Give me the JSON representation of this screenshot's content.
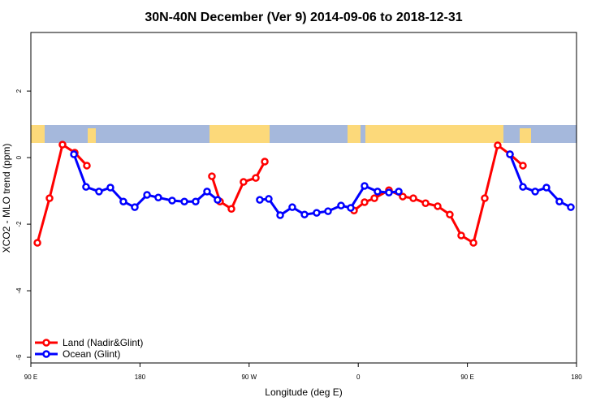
{
  "chart_data": {
    "type": "line",
    "title": "30N-40N December (Ver 9)   2014-09-06 to 2018-12-31",
    "x_label": "Longitude (deg E)",
    "y_label": "XCO2 - MLO trend (ppm)",
    "xlim": [
      90,
      540
    ],
    "xticks": [
      {
        "value": 90,
        "label": "90 E"
      },
      180,
      {
        "value": 270,
        "label": "90 W"
      },
      {
        "value": 360,
        "label": "0"
      },
      {
        "value": 450,
        "label": "90 E"
      },
      {
        "value": 540,
        "label": "180"
      }
    ],
    "ylim": [
      -6.17,
      3.76
    ],
    "yticks": [
      -6,
      -4,
      -2,
      0,
      2
    ],
    "legend": "bottom-left",
    "series": [
      {
        "name": "Land (Nadir&Glint)",
        "color": "#ff0000",
        "x": [
          95.4,
          105.4,
          116.1,
          126.2,
          136.2,
          null,
          239.3,
          246,
          255.4,
          265.4,
          275.5,
          282.9,
          null,
          356.5,
          365.2,
          373.3,
          385.3,
          396.7,
          405.4,
          415.5,
          425.5,
          435.5,
          444.9,
          455,
          464.3,
          475,
          485.1,
          495.8
        ],
        "values": [
          -2.56,
          -1.22,
          0.39,
          0.15,
          -0.24,
          null,
          -0.56,
          -1.32,
          -1.54,
          -0.73,
          -0.61,
          -0.12,
          null,
          -1.59,
          -1.34,
          -1.22,
          -0.98,
          -1.17,
          -1.22,
          -1.37,
          -1.46,
          -1.71,
          -2.34,
          -2.56,
          -1.22,
          0.37,
          0.1,
          -0.24
        ]
      },
      {
        "name": "Ocean (Glint)",
        "color": "#0000ff",
        "x": [
          125.5,
          135.5,
          146.2,
          155.6,
          166.3,
          175.7,
          185.8,
          195.1,
          206.5,
          216.6,
          225.9,
          235.3,
          244,
          null,
          278.8,
          286.2,
          295.6,
          305.6,
          315.7,
          325.7,
          335.1,
          345.8,
          353.8,
          365.2,
          375.9,
          385.3,
          393.4,
          null,
          485.1,
          495.8,
          505.9,
          515.2,
          525.9,
          535.3
        ],
        "values": [
          0.1,
          -0.88,
          -1.02,
          -0.9,
          -1.32,
          -1.49,
          -1.12,
          -1.2,
          -1.29,
          -1.32,
          -1.32,
          -1.02,
          -1.27,
          null,
          -1.27,
          -1.24,
          -1.73,
          -1.49,
          -1.71,
          -1.66,
          -1.61,
          -1.44,
          -1.51,
          -0.85,
          -1.02,
          -1.05,
          -1.02,
          null,
          0.1,
          -0.88,
          -1.02,
          -0.9,
          -1.32,
          -1.49
        ]
      }
    ]
  }
}
